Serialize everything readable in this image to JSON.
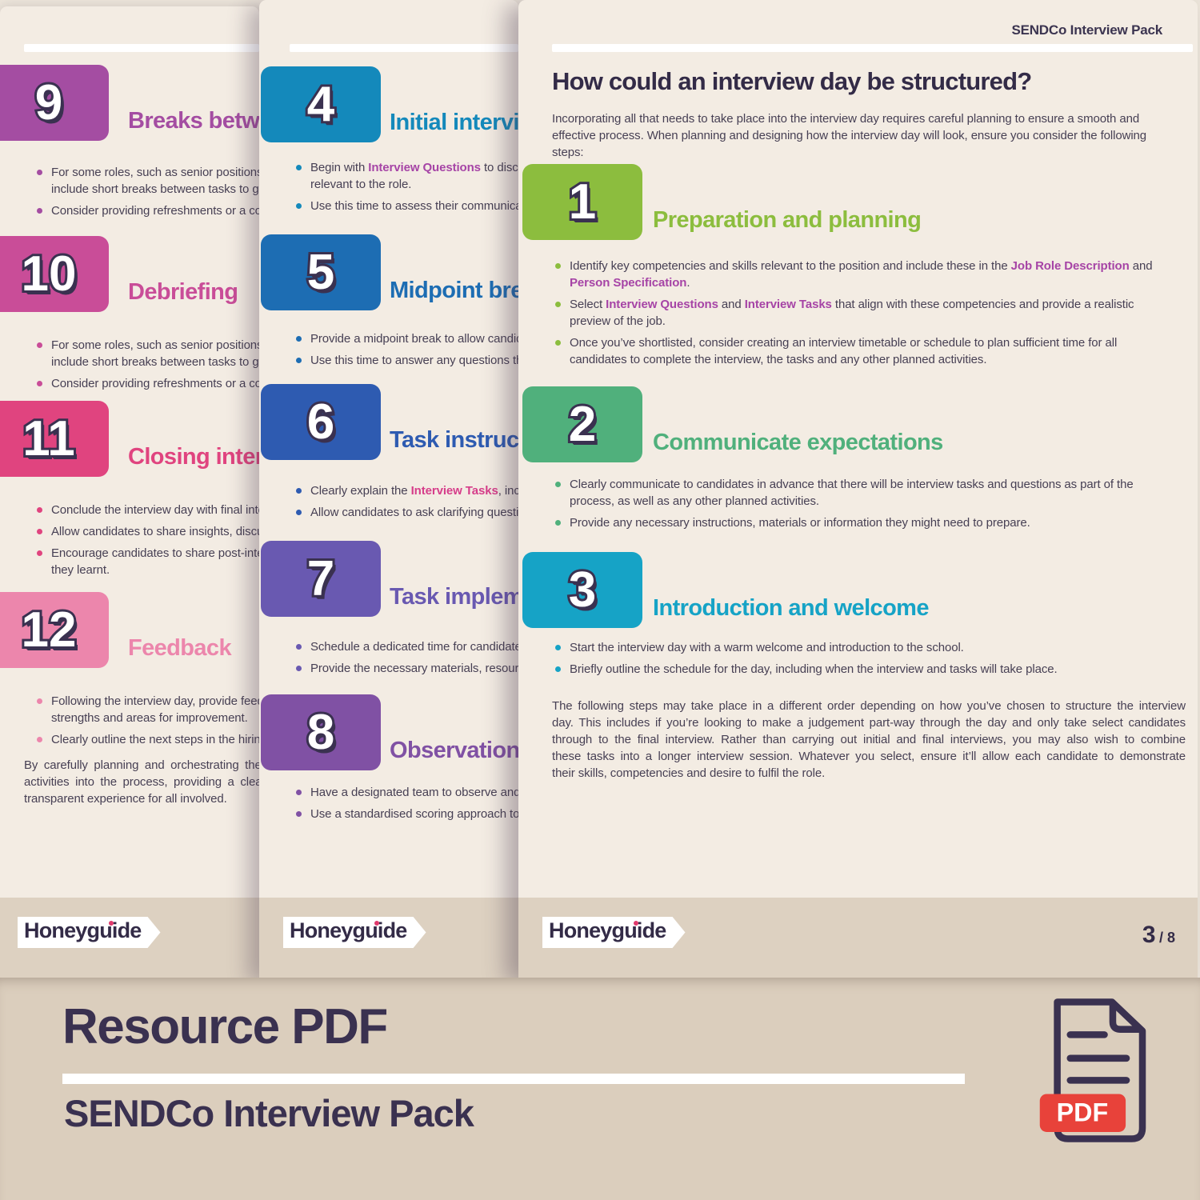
{
  "palette": {
    "page_bg": "#f3ece3",
    "band_bg": "#ddd1c1",
    "banner_bg": "#dbcebd",
    "ink": "#332b47",
    "link_purple": "#a644a6",
    "link_pink": "#d63d8a",
    "pdf_red": "#e8423a",
    "logo_dot": "#e03a6d"
  },
  "front_page": {
    "header_label": "SENDCo Interview Pack",
    "title": "How could an interview day be structured?",
    "intro_lines": [
      "Incorporating all that needs to take place into the interview day requires careful planning to ensure a smooth and",
      "effective process. When planning and designing how the interview day will look, ensure you consider the following",
      "steps:"
    ],
    "steps": [
      {
        "number": "1",
        "title": "Preparation and planning",
        "color": "#8cbd3e",
        "bullets": [
          {
            "lines": [
              [
                {
                  "t": "Identify key competencies and skills relevant to the position and include these in the "
                },
                {
                  "t": "Job Role Description",
                  "b": true,
                  "c": "#a644a6"
                },
                {
                  "t": " and"
                }
              ],
              [
                {
                  "t": "Person Specification",
                  "b": true,
                  "c": "#a644a6"
                },
                {
                  "t": "."
                }
              ]
            ]
          },
          {
            "lines": [
              [
                {
                  "t": "Select "
                },
                {
                  "t": "Interview Questions",
                  "b": true,
                  "c": "#a644a6"
                },
                {
                  "t": " and "
                },
                {
                  "t": "Interview Tasks",
                  "b": true,
                  "c": "#a644a6"
                },
                {
                  "t": " that align with these competencies and provide a realistic"
                }
              ],
              [
                {
                  "t": "preview of the job."
                }
              ]
            ]
          },
          {
            "lines": [
              [
                {
                  "t": "Once you’ve shortlisted, consider creating an interview timetable or schedule to plan sufficient time for all"
                }
              ],
              [
                {
                  "t": "candidates to complete the interview, the tasks and any other planned activities."
                }
              ]
            ]
          }
        ]
      },
      {
        "number": "2",
        "title": "Communicate expectations",
        "color": "#50b07c",
        "bullets": [
          {
            "lines": [
              [
                {
                  "t": "Clearly communicate to candidates in advance that there will be interview tasks and questions as part of the"
                }
              ],
              [
                {
                  "t": "process, as well as any other planned activities."
                }
              ]
            ]
          },
          {
            "lines": [
              [
                {
                  "t": "Provide any necessary instructions, materials or information they might need to prepare."
                }
              ]
            ]
          }
        ]
      },
      {
        "number": "3",
        "title": "Introduction and welcome",
        "color": "#16a3c6",
        "bullets": [
          {
            "lines": [
              [
                {
                  "t": "Start the interview day with a warm welcome and introduction to the school."
                }
              ]
            ]
          },
          {
            "lines": [
              [
                {
                  "t": "Briefly outline the schedule for the day, including when the interview and tasks will take place."
                }
              ]
            ]
          }
        ]
      }
    ],
    "closing_lines": [
      "The following steps may take place in a different order depending on how you’ve chosen to structure the interview",
      "day. This includes if you’re looking to make a judgement part-way through the day and only take select candidates",
      "through to the final interview. Rather than carrying out initial and final interviews, you may also wish to combine",
      "these tasks into a longer interview session. Whatever you select, ensure it’ll allow each candidate to demonstrate",
      "their skills, competencies and desire to fulfil the role."
    ],
    "footer": {
      "logo": "Honeyguide",
      "page_number": "3",
      "page_total": "/ 8"
    }
  },
  "middle_page": {
    "steps": [
      {
        "number": "4",
        "title": "Initial interviews",
        "color": "#1489bb",
        "bullets": [
          {
            "lines": [
              [
                {
                  "t": "Begin with "
                },
                {
                  "t": "Interview Questions",
                  "b": true,
                  "c": "#a644a6"
                },
                {
                  "t": " to discuss"
                }
              ],
              [
                {
                  "t": "relevant to the role."
                }
              ]
            ]
          },
          {
            "lines": [
              [
                {
                  "t": "Use this time to assess their communication"
                }
              ]
            ]
          }
        ]
      },
      {
        "number": "5",
        "title": "Midpoint break",
        "color": "#1d6db3",
        "bullets": [
          {
            "lines": [
              [
                {
                  "t": "Provide a midpoint break to allow candidates"
                }
              ]
            ]
          },
          {
            "lines": [
              [
                {
                  "t": "Use this time to answer any questions they"
                }
              ]
            ]
          }
        ]
      },
      {
        "number": "6",
        "title": "Task instructions",
        "color": "#2e5bb1",
        "bullets": [
          {
            "lines": [
              [
                {
                  "t": "Clearly explain the "
                },
                {
                  "t": "Interview Tasks",
                  "b": true,
                  "c": "#d63d8a"
                },
                {
                  "t": ", including"
                }
              ]
            ]
          },
          {
            "lines": [
              [
                {
                  "t": "Allow candidates to ask clarifying questions"
                }
              ]
            ]
          }
        ]
      },
      {
        "number": "7",
        "title": "Task implementation",
        "color": "#6959b1",
        "bullets": [
          {
            "lines": [
              [
                {
                  "t": "Schedule a dedicated time for candidates"
                }
              ]
            ]
          },
          {
            "lines": [
              [
                {
                  "t": "Provide the necessary materials, resources"
                }
              ]
            ]
          }
        ]
      },
      {
        "number": "8",
        "title": "Observation",
        "color": "#8051a4",
        "bullets": [
          {
            "lines": [
              [
                {
                  "t": "Have a designated team to observe and"
                }
              ]
            ]
          },
          {
            "lines": [
              [
                {
                  "t": "Use a standardised scoring approach to"
                }
              ]
            ]
          }
        ]
      }
    ],
    "footer": {
      "logo": "Honeyguide"
    }
  },
  "left_page": {
    "steps": [
      {
        "number": "9",
        "title": "Breaks between",
        "color": "#a44da2",
        "bullets": [
          {
            "lines": [
              [
                {
                  "t": "For some roles, such as senior positions,"
                }
              ],
              [
                {
                  "t": "include short breaks between tasks to give"
                }
              ]
            ]
          },
          {
            "lines": [
              [
                {
                  "t": "Consider providing refreshments or a comfortable"
                }
              ]
            ]
          }
        ]
      },
      {
        "number": "10",
        "title": "Debriefing",
        "color": "#c94d98",
        "bullets": [
          {
            "lines": [
              [
                {
                  "t": "For some roles, such as senior positions,"
                }
              ],
              [
                {
                  "t": "include short breaks between tasks to give"
                }
              ]
            ]
          },
          {
            "lines": [
              [
                {
                  "t": "Consider providing refreshments or a comfortable"
                }
              ]
            ]
          }
        ]
      },
      {
        "number": "11",
        "title": "Closing interviews",
        "color": "#e0447f",
        "bullets": [
          {
            "lines": [
              [
                {
                  "t": "Conclude the interview day with final interviews"
                }
              ]
            ]
          },
          {
            "lines": [
              [
                {
                  "t": "Allow candidates to share insights, discuss"
                }
              ]
            ]
          },
          {
            "lines": [
              [
                {
                  "t": "Encourage candidates to share post-interview"
                }
              ],
              [
                {
                  "t": "they learnt."
                }
              ]
            ]
          }
        ]
      },
      {
        "number": "12",
        "title": "Feedback",
        "color": "#ec86ac",
        "bullets": [
          {
            "lines": [
              [
                {
                  "t": "Following the interview day, provide feedback on"
                }
              ],
              [
                {
                  "t": "strengths and areas for improvement."
                }
              ]
            ]
          },
          {
            "lines": [
              [
                {
                  "t": "Clearly outline the next steps in the hiring"
                }
              ]
            ]
          }
        ]
      }
    ],
    "closing_lines": [
      "By carefully planning and orchestrating the",
      "activities into the process, providing a clear",
      "transparent experience for all involved."
    ],
    "footer": {
      "logo": "Honeyguide"
    }
  },
  "banner": {
    "title": "Resource PDF",
    "subtitle": "SENDCo Interview Pack",
    "pdf_badge": "PDF"
  }
}
